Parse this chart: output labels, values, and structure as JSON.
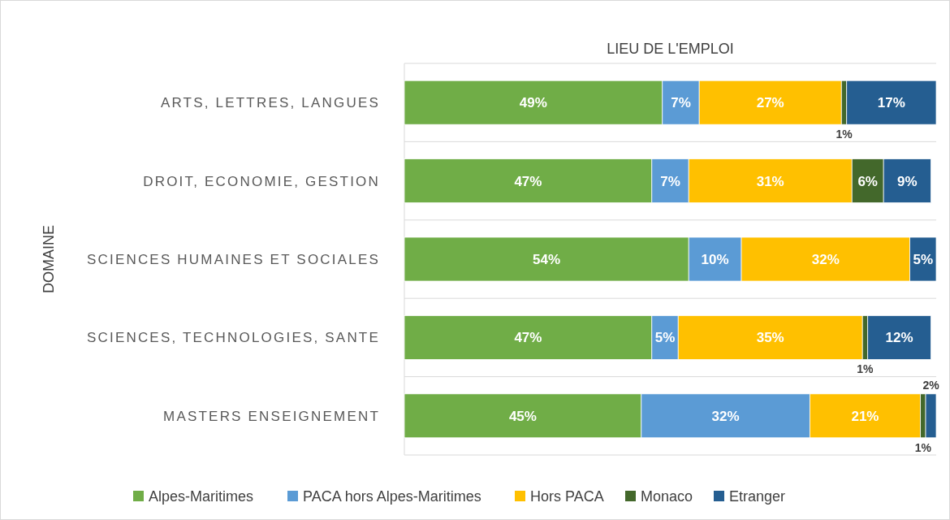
{
  "chart_data": {
    "type": "bar",
    "orientation": "horizontal",
    "stacked": true,
    "title": "LIEU DE L'EMPLOI",
    "ylabel": "DOMAINE",
    "categories": [
      "ARTS, LETTRES, LANGUES",
      "DROIT, ECONOMIE, GESTION",
      "SCIENCES HUMAINES ET SOCIALES",
      "SCIENCES, TECHNOLOGIES, SANTE",
      "MASTERS ENSEIGNEMENT"
    ],
    "series": [
      {
        "name": "Alpes-Maritimes",
        "color": "#70ad47",
        "values": [
          49,
          47,
          54,
          47,
          45
        ],
        "value_labels": [
          "49%",
          "47%",
          "54%",
          "47%",
          "45%"
        ]
      },
      {
        "name": "PACA hors Alpes-Maritimes",
        "color": "#5b9bd5",
        "values": [
          7,
          7,
          10,
          5,
          32
        ],
        "value_labels": [
          "7%",
          "7%",
          "10%",
          "5%",
          "32%"
        ]
      },
      {
        "name": "Hors PACA",
        "color": "#ffc000",
        "values": [
          27,
          31,
          32,
          35,
          21
        ],
        "value_labels": [
          "27%",
          "31%",
          "32%",
          "35%",
          "21%"
        ]
      },
      {
        "name": "Monaco",
        "color": "#43682b",
        "values": [
          1,
          6,
          null,
          1,
          1
        ],
        "value_labels": [
          "1%",
          "6%",
          null,
          "1%",
          "1%"
        ]
      },
      {
        "name": "Etranger",
        "color": "#255e91",
        "values": [
          17,
          9,
          5,
          12,
          2
        ],
        "value_labels": [
          "17%",
          "9%",
          "5%",
          "12%",
          "2%"
        ]
      }
    ],
    "legend": "bottom"
  }
}
